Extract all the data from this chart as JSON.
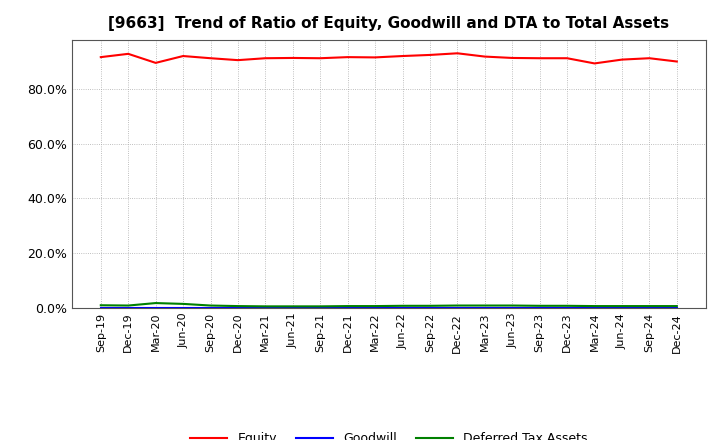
{
  "title": "[9663]  Trend of Ratio of Equity, Goodwill and DTA to Total Assets",
  "x_labels": [
    "Sep-19",
    "Dec-19",
    "Mar-20",
    "Jun-20",
    "Sep-20",
    "Dec-20",
    "Mar-21",
    "Jun-21",
    "Sep-21",
    "Dec-21",
    "Mar-22",
    "Jun-22",
    "Sep-22",
    "Dec-22",
    "Mar-23",
    "Jun-23",
    "Sep-23",
    "Dec-23",
    "Mar-24",
    "Jun-24",
    "Sep-24",
    "Dec-24"
  ],
  "equity": [
    0.916,
    0.928,
    0.895,
    0.92,
    0.912,
    0.905,
    0.912,
    0.913,
    0.912,
    0.916,
    0.915,
    0.92,
    0.924,
    0.93,
    0.918,
    0.913,
    0.912,
    0.912,
    0.893,
    0.907,
    0.912,
    0.9
  ],
  "goodwill": [
    0.0,
    0.0,
    0.0,
    0.0,
    0.0,
    0.0,
    0.0,
    0.0,
    0.0,
    0.0,
    0.0,
    0.0,
    0.0,
    0.0,
    0.0,
    0.0,
    0.0,
    0.0,
    0.0,
    0.0,
    0.0,
    0.0
  ],
  "dta": [
    0.01,
    0.009,
    0.018,
    0.015,
    0.009,
    0.007,
    0.006,
    0.006,
    0.006,
    0.007,
    0.007,
    0.008,
    0.008,
    0.009,
    0.009,
    0.009,
    0.008,
    0.008,
    0.007,
    0.007,
    0.007,
    0.007
  ],
  "equity_color": "#FF0000",
  "goodwill_color": "#0000FF",
  "dta_color": "#008000",
  "background_color": "#FFFFFF",
  "grid_color": "#AAAAAA",
  "ylim": [
    0.0,
    0.98
  ],
  "yticks": [
    0.0,
    0.2,
    0.4,
    0.6,
    0.8
  ],
  "legend_labels": [
    "Equity",
    "Goodwill",
    "Deferred Tax Assets"
  ],
  "title_fontsize": 11,
  "tick_fontsize": 8,
  "ytick_fontsize": 9
}
